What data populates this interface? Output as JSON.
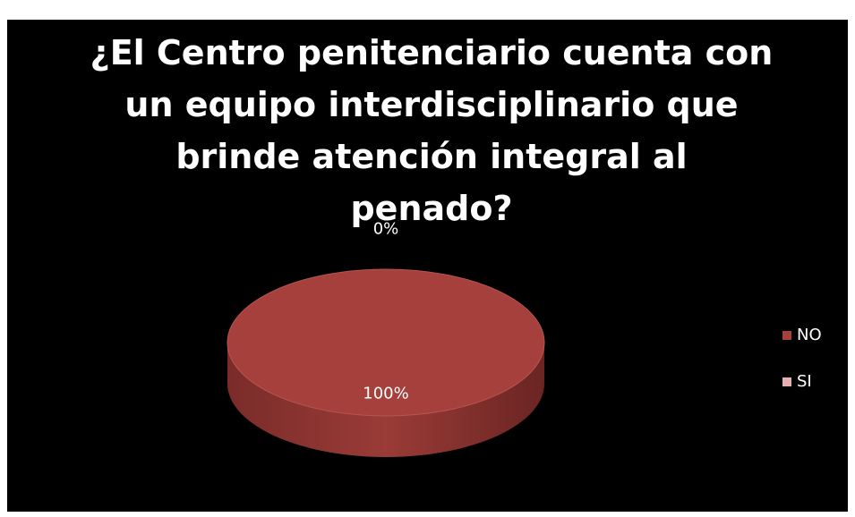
{
  "chart_data": {
    "type": "pie",
    "title": "¿El Centro penitenciario cuenta con un equipo interdisciplinario que brinde atención integral al penado?",
    "categories": [
      "NO",
      "SI"
    ],
    "values": [
      100,
      0
    ],
    "value_labels": [
      "100%",
      "0%"
    ],
    "colors": [
      "#a5403c",
      "#e6b0b0"
    ],
    "legend": "right"
  }
}
